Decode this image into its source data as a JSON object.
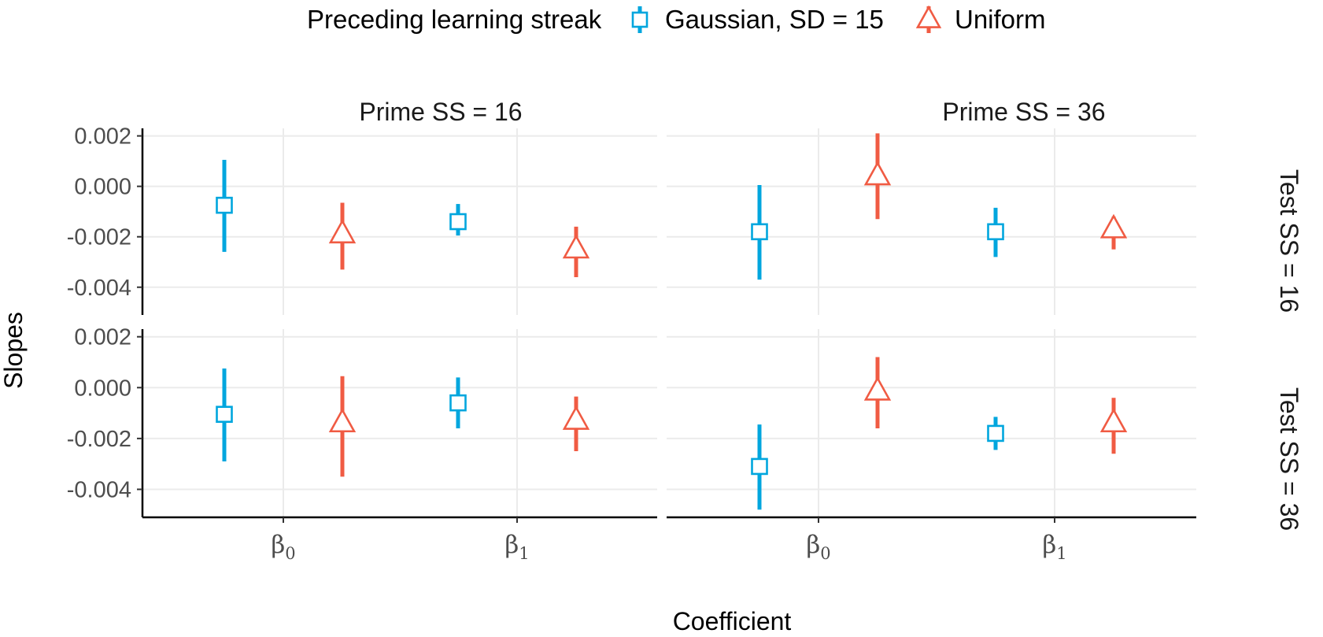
{
  "legend": {
    "title": "Preceding learning streak",
    "items": [
      {
        "label": "Gaussian, SD = 15",
        "shape": "square",
        "color": "#00a6de"
      },
      {
        "label": "Uniform",
        "shape": "triangle",
        "color": "#f05b43"
      }
    ]
  },
  "chart_data": {
    "type": "pointrange",
    "xlabel": "Coefficient",
    "ylabel": "Slopes",
    "ylim": [
      -0.0051,
      0.0023
    ],
    "y_ticks": [
      "0.002",
      "0.000",
      "-0.002",
      "-0.004"
    ],
    "y_tick_values": [
      0.002,
      0.0,
      -0.002,
      -0.004
    ],
    "categories": [
      {
        "base": "β",
        "sub": "0"
      },
      {
        "base": "β",
        "sub": "1"
      }
    ],
    "col_strips": [
      "Prime SS = 16",
      "Prime SS = 36"
    ],
    "row_strips": [
      "Test SS = 16",
      "Test SS = 36"
    ],
    "grid": true,
    "legend_position": "top",
    "series": [
      {
        "name": "Gaussian, SD = 15",
        "shape": "square",
        "color": "#00a6de"
      },
      {
        "name": "Uniform",
        "shape": "triangle",
        "color": "#f05b43"
      }
    ],
    "panels": [
      {
        "col": "Prime SS = 16",
        "row": "Test SS = 16",
        "points": [
          {
            "coef": 0,
            "series": 0,
            "y": -0.00075,
            "lo": -0.0026,
            "hi": 0.00105
          },
          {
            "coef": 0,
            "series": 1,
            "y": -0.0019,
            "lo": -0.0033,
            "hi": -0.00065
          },
          {
            "coef": 1,
            "series": 0,
            "y": -0.0014,
            "lo": -0.00195,
            "hi": -0.0007
          },
          {
            "coef": 1,
            "series": 1,
            "y": -0.0025,
            "lo": -0.0036,
            "hi": -0.0016
          }
        ]
      },
      {
        "col": "Prime SS = 36",
        "row": "Test SS = 16",
        "points": [
          {
            "coef": 0,
            "series": 0,
            "y": -0.0018,
            "lo": -0.0037,
            "hi": 5e-05
          },
          {
            "coef": 0,
            "series": 1,
            "y": 0.0004,
            "lo": -0.0013,
            "hi": 0.0021
          },
          {
            "coef": 1,
            "series": 0,
            "y": -0.0018,
            "lo": -0.0028,
            "hi": -0.00085
          },
          {
            "coef": 1,
            "series": 1,
            "y": -0.0017,
            "lo": -0.0025,
            "hi": -0.0012
          }
        ]
      },
      {
        "col": "Prime SS = 16",
        "row": "Test SS = 36",
        "points": [
          {
            "coef": 0,
            "series": 0,
            "y": -0.00105,
            "lo": -0.0029,
            "hi": 0.00075
          },
          {
            "coef": 0,
            "series": 1,
            "y": -0.0014,
            "lo": -0.0035,
            "hi": 0.00045
          },
          {
            "coef": 1,
            "series": 0,
            "y": -0.0006,
            "lo": -0.0016,
            "hi": 0.0004
          },
          {
            "coef": 1,
            "series": 1,
            "y": -0.0013,
            "lo": -0.0025,
            "hi": -0.00035
          }
        ]
      },
      {
        "col": "Prime SS = 36",
        "row": "Test SS = 36",
        "points": [
          {
            "coef": 0,
            "series": 0,
            "y": -0.0031,
            "lo": -0.0048,
            "hi": -0.00145
          },
          {
            "coef": 0,
            "series": 1,
            "y": -0.00015,
            "lo": -0.0016,
            "hi": 0.0012
          },
          {
            "coef": 1,
            "series": 0,
            "y": -0.0018,
            "lo": -0.00245,
            "hi": -0.00115
          },
          {
            "coef": 1,
            "series": 1,
            "y": -0.0014,
            "lo": -0.0026,
            "hi": -0.0004
          }
        ]
      }
    ]
  }
}
